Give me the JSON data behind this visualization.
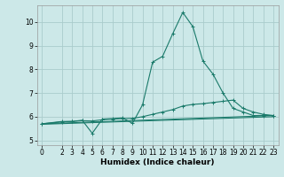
{
  "title": "",
  "xlabel": "Humidex (Indice chaleur)",
  "bg_color": "#cce8e8",
  "grid_color": "#aacccc",
  "line_color": "#1a7a6a",
  "xlim": [
    -0.5,
    23.5
  ],
  "ylim": [
    4.8,
    10.7
  ],
  "yticks": [
    5,
    6,
    7,
    8,
    9,
    10
  ],
  "xticks": [
    0,
    2,
    3,
    4,
    5,
    6,
    7,
    8,
    9,
    10,
    11,
    12,
    13,
    14,
    15,
    16,
    17,
    18,
    19,
    20,
    21,
    22,
    23
  ],
  "series_main": {
    "x": [
      0,
      2,
      3,
      4,
      5,
      6,
      7,
      8,
      9,
      10,
      11,
      12,
      13,
      14,
      15,
      16,
      17,
      18,
      19,
      20,
      21,
      22,
      23
    ],
    "y": [
      5.7,
      5.8,
      5.8,
      5.85,
      5.3,
      5.9,
      5.92,
      5.95,
      5.72,
      6.5,
      8.3,
      8.55,
      9.5,
      10.4,
      9.8,
      8.35,
      7.8,
      7.0,
      6.35,
      6.2,
      6.05,
      6.05,
      6.05
    ]
  },
  "series_smooth": {
    "x": [
      0,
      2,
      3,
      4,
      5,
      6,
      7,
      8,
      9,
      10,
      11,
      12,
      13,
      14,
      15,
      16,
      17,
      18,
      19,
      20,
      21,
      22,
      23
    ],
    "y": [
      5.7,
      5.78,
      5.8,
      5.83,
      5.82,
      5.87,
      5.9,
      5.92,
      5.93,
      6.0,
      6.1,
      6.2,
      6.3,
      6.45,
      6.52,
      6.55,
      6.6,
      6.65,
      6.7,
      6.35,
      6.2,
      6.1,
      6.05
    ]
  },
  "series_line1": {
    "x": [
      0,
      23
    ],
    "y": [
      5.7,
      6.05
    ]
  },
  "series_line2": {
    "x": [
      0,
      23
    ],
    "y": [
      5.68,
      6.0
    ]
  },
  "tick_fontsize": 5.5,
  "xlabel_fontsize": 6.5
}
